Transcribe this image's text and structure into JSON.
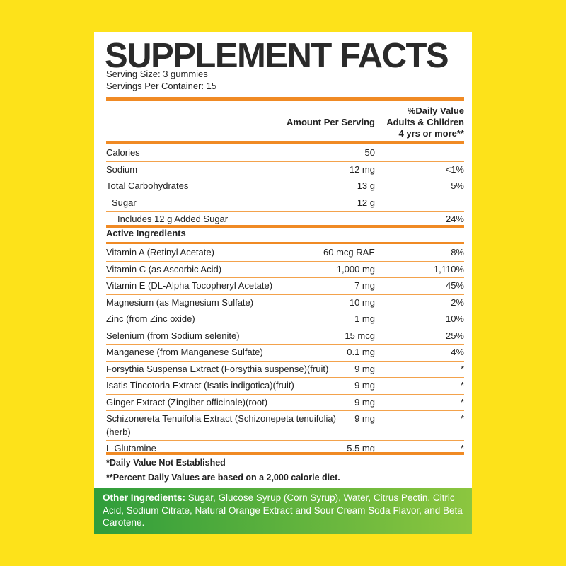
{
  "title": "SUPPLEMENT FACTS",
  "serving_size": "Serving Size: 3 gummies",
  "servings_per_container": "Servings Per Container: 15",
  "header": {
    "amount": "Amount Per Serving",
    "daily_value": [
      "%Daily Value",
      "Adults & Children",
      "4 yrs or more**"
    ]
  },
  "nutrition_rows": [
    {
      "name": "Calories",
      "amount": "50"
    },
    {
      "name": "Sodium",
      "amount": "12 mg",
      "daily_value": "<1%"
    },
    {
      "name": "Total Carbohydrates",
      "amount": "13 g",
      "daily_value": "5%"
    },
    {
      "name": "Sugar",
      "amount": "12 g"
    },
    {
      "name": "Includes 12 g Added Sugar",
      "daily_value": "24%"
    }
  ],
  "active_heading": "Active Ingredients",
  "active_rows": [
    {
      "name": "Vitamin A (Retinyl Acetate)",
      "amount": "60 mcg RAE",
      "daily_value": "8%"
    },
    {
      "name": "Vitamin C (as Ascorbic Acid)",
      "amount": "1,000 mg",
      "daily_value": "1,110%"
    },
    {
      "name": "Vitamin E (DL-Alpha Tocopheryl Acetate)",
      "amount": "7 mg",
      "daily_value": "45%"
    },
    {
      "name": "Magnesium (as Magnesium Sulfate)",
      "amount": "10 mg",
      "daily_value": "2%"
    },
    {
      "name": "Zinc (from Zinc oxide)",
      "amount": "1 mg",
      "daily_value": "10%"
    },
    {
      "name": "Selenium (from Sodium selenite)",
      "amount": "15 mcg",
      "daily_value": "25%"
    },
    {
      "name": "Manganese (from Manganese Sulfate)",
      "amount": "0.1 mg",
      "daily_value": "4%"
    },
    {
      "name": "Forsythia Suspensa Extract (Forsythia suspense)(fruit)",
      "amount": "9 mg",
      "daily_value": "*"
    },
    {
      "name": "Isatis Tincotoria Extract (Isatis indigotica)(fruit)",
      "amount": "9 mg",
      "daily_value": "*"
    },
    {
      "name": "Ginger Extract (Zingiber officinale)(root)",
      "amount": "9 mg",
      "daily_value": "*"
    },
    {
      "name": "Schizonereta Tenuifolia Extract (Schizonepeta tenuifolia)(herb)",
      "amount": "9 mg",
      "daily_value": "*"
    },
    {
      "name": "L-Glutamine",
      "amount": "5.5 mg",
      "daily_value": "*"
    }
  ],
  "footnotes": [
    "*Daily Value Not Established",
    "**Percent Daily Values are based on a 2,000 calorie diet."
  ],
  "other_ingredients": {
    "label": "Other Ingredients:",
    "text": " Sugar, Glucose Syrup (Corn Syrup), Water, Citrus Pectin, Citric Acid, Sodium Citrate, Natural Orange Extract and Sour Cream Soda Flavor, and Beta Carotene."
  }
}
